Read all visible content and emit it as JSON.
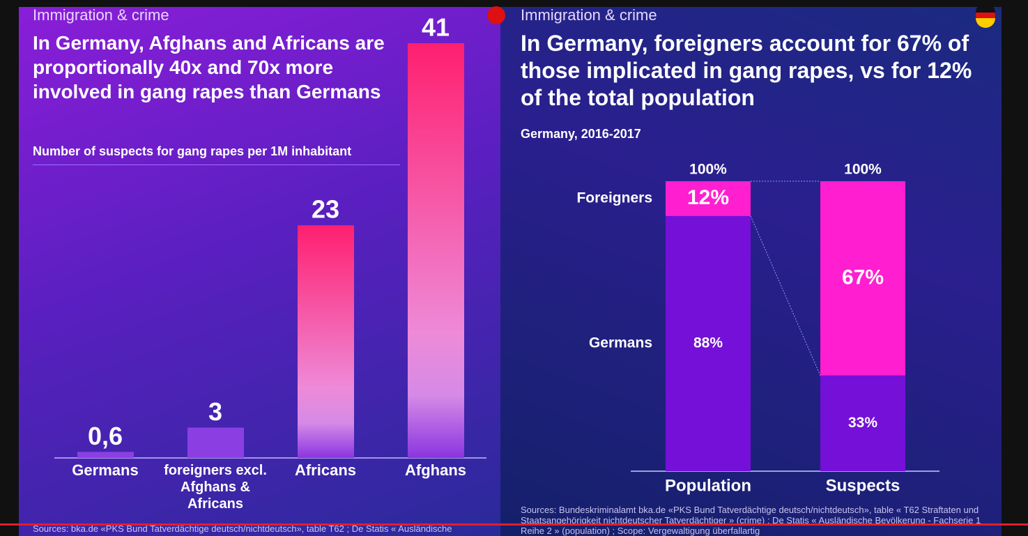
{
  "chart_data": [
    {
      "type": "bar",
      "kicker": "Immigration & crime",
      "title": "In Germany, Afghans and Africans are proportionally 40x and 70x more involved in gang rapes than Germans",
      "subtitle": "Number of suspects for gang rapes per 1M inhabitant",
      "categories": [
        "Germans",
        "foreigners excl. Afghans & Africans",
        "Africans",
        "Afghans"
      ],
      "values": [
        0.6,
        3,
        23,
        41
      ],
      "value_labels": [
        "0,6",
        "3",
        "23",
        "41"
      ],
      "colors": [
        "#8b3fe3",
        "#8b3fe3",
        "#ff1f6f",
        "#ff1f6f"
      ],
      "ylim": [
        0,
        41
      ],
      "sources": "Sources: bka.de «PKS Bund Tatverdächtige deutsch/nichtdeutsch», table T62 ; De Statis « Ausländische"
    },
    {
      "type": "stacked_bar",
      "kicker": "Immigration & crime",
      "title": "In Germany, foreigners account for 67% of those implicated in gang rapes, vs for 12% of the total population",
      "subtitle": "Germany, 2016-2017",
      "categories": [
        "Population",
        "Suspects"
      ],
      "series": [
        {
          "name": "Germans",
          "color": "#7410d8",
          "values": [
            88,
            33
          ],
          "value_labels": [
            "88%",
            "33%"
          ]
        },
        {
          "name": "Foreigners",
          "color": "#ff1fd0",
          "values": [
            12,
            67
          ],
          "value_labels": [
            "12%",
            "67%"
          ]
        }
      ],
      "totals": [
        100,
        100
      ],
      "total_labels": [
        "100%",
        "100%"
      ],
      "ylim": [
        0,
        100
      ],
      "sources": "Sources: Bundeskriminalamt bka.de «PKS Bund Tatverdächtige deutsch/nichtdeutsch», table « T62 Straftaten und Staatsangehörigkeit nichtdeutscher Tatverdächtiger » (crime) ; De Statis « Ausländische Bevölkerung - Fachserie 1 Reihe 2 » (population) ; Scope: Vergewaltigung überfallartig"
    }
  ]
}
